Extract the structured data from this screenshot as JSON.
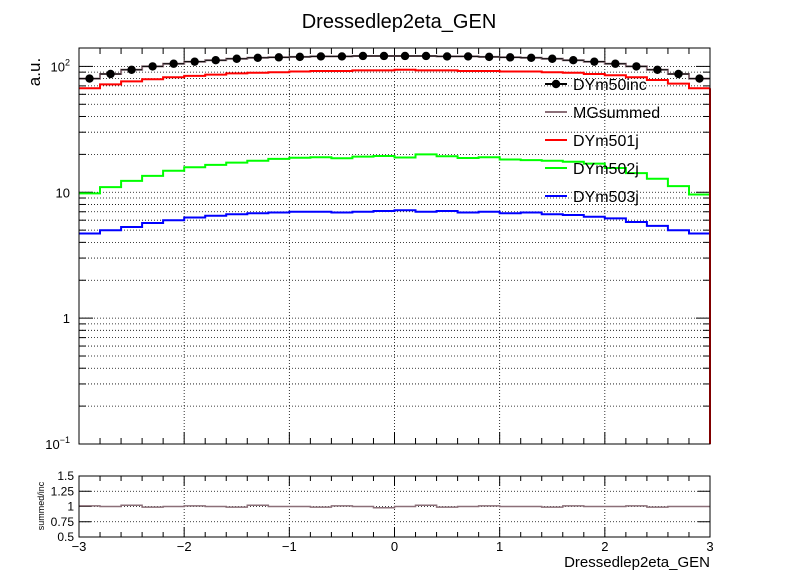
{
  "chart_data": [
    {
      "type": "line",
      "title": "Dressedlep2eta_GEN",
      "ylabel": "a.u.",
      "xlim": [
        -3,
        3
      ],
      "ylim": [
        0.1,
        140
      ],
      "yscale": "log",
      "grid": true,
      "legend_position": "top-right",
      "y_tick_labels": [
        {
          "value": 0.1,
          "base": "10",
          "exp": "−1"
        },
        {
          "value": 1,
          "base": "1",
          "exp": ""
        },
        {
          "value": 10,
          "base": "10",
          "exp": ""
        },
        {
          "value": 100,
          "base": "10",
          "exp": "2"
        }
      ],
      "x": [
        -2.9,
        -2.7,
        -2.5,
        -2.3,
        -2.1,
        -1.9,
        -1.7,
        -1.5,
        -1.3,
        -1.1,
        -0.9,
        -0.7,
        -0.5,
        -0.3,
        -0.1,
        0.1,
        0.3,
        0.5,
        0.7,
        0.9,
        1.1,
        1.3,
        1.5,
        1.7,
        1.9,
        2.1,
        2.3,
        2.5,
        2.7,
        2.9
      ],
      "series": [
        {
          "name": "DYm50inc",
          "style": "markers",
          "color": "#000000",
          "values": [
            80,
            87,
            94,
            100,
            105,
            109,
            112,
            115,
            117,
            118,
            119,
            120,
            120,
            121,
            121,
            121,
            121,
            120,
            120,
            119,
            118,
            117,
            115,
            112,
            109,
            105,
            100,
            94,
            87,
            80
          ]
        },
        {
          "name": "MGsummed",
          "style": "step",
          "color": "#8b6f78",
          "values": [
            80,
            87,
            94,
            100,
            105,
            109,
            112,
            115,
            117,
            118,
            119,
            120,
            120,
            121,
            121,
            121,
            121,
            120,
            120,
            119,
            118,
            117,
            115,
            112,
            109,
            105,
            100,
            94,
            87,
            80
          ]
        },
        {
          "name": "DYm501j",
          "style": "step",
          "color": "#ff0000",
          "values": [
            67,
            72,
            76,
            79,
            82,
            84,
            86,
            88,
            89,
            90,
            91,
            92,
            92,
            93,
            93,
            94,
            93,
            93,
            92,
            92,
            91,
            91,
            90,
            89,
            87,
            85,
            82,
            78,
            73,
            67
          ]
        },
        {
          "name": "DYm502j",
          "style": "step",
          "color": "#00ff00",
          "values": [
            9.8,
            11,
            12.3,
            13.5,
            14.8,
            15.8,
            16.5,
            17.2,
            17.8,
            18.4,
            18.8,
            19.0,
            18.6,
            19.2,
            19.4,
            18.9,
            20.0,
            19.3,
            18.7,
            19.0,
            18.2,
            18.0,
            17.8,
            17.5,
            16.9,
            15.6,
            14.2,
            12.8,
            11.2,
            9.6
          ]
        },
        {
          "name": "DYm503j",
          "style": "step",
          "color": "#0000ff",
          "values": [
            4.7,
            5.0,
            5.3,
            5.7,
            6.0,
            6.3,
            6.5,
            6.7,
            6.8,
            6.9,
            7.0,
            7.0,
            6.9,
            7.0,
            7.1,
            7.2,
            7.0,
            7.1,
            6.9,
            7.0,
            6.8,
            6.9,
            6.7,
            6.6,
            6.4,
            6.2,
            5.8,
            5.4,
            5.0,
            4.7
          ]
        }
      ]
    },
    {
      "type": "line",
      "title": "",
      "xlabel": "Dressedlep2eta_GEN",
      "ylabel": "summed/inc",
      "xlim": [
        -3,
        3
      ],
      "ylim": [
        0.5,
        1.5
      ],
      "y_tick_labels": [
        "0.5",
        "0.75",
        "1",
        "1.25",
        "1.5"
      ],
      "x_tick_labels": [
        "−3",
        "−2",
        "−1",
        "0",
        "1",
        "2",
        "3"
      ],
      "grid": true,
      "x": [
        -2.9,
        -2.7,
        -2.5,
        -2.3,
        -2.1,
        -1.9,
        -1.7,
        -1.5,
        -1.3,
        -1.1,
        -0.9,
        -0.7,
        -0.5,
        -0.3,
        -0.1,
        0.1,
        0.3,
        0.5,
        0.7,
        0.9,
        1.1,
        1.3,
        1.5,
        1.7,
        1.9,
        2.1,
        2.3,
        2.5,
        2.7,
        2.9
      ],
      "series": [
        {
          "style": "step",
          "color": "#8b6f78",
          "values": [
            1.01,
            1.0,
            1.02,
            0.99,
            1.0,
            1.01,
            1.0,
            0.99,
            1.02,
            1.0,
            1.0,
            0.99,
            1.01,
            1.0,
            0.98,
            1.0,
            1.02,
            0.99,
            1.0,
            1.01,
            1.0,
            1.0,
            0.99,
            1.01,
            1.0,
            1.0,
            1.01,
            0.99,
            1.0,
            1.0
          ]
        }
      ]
    }
  ]
}
